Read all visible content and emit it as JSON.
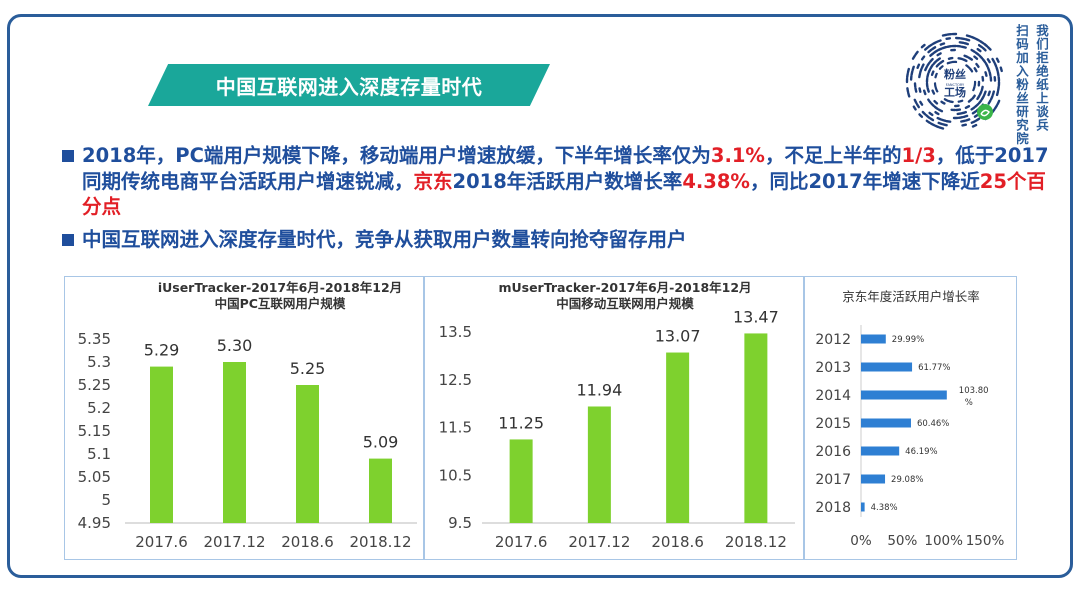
{
  "banner": {
    "title": "中国互联网进入深度存量时代"
  },
  "bullets": {
    "b1": {
      "s1": "2018年，PC端用户规模下降，移动端用户增速放缓，下半年增长率仅为",
      "r1": "3.1%",
      "s2": "，不足上半年的",
      "r2": "1/3",
      "s3": "，低于2017同期传统电商平台活跃用户增速锐减，",
      "r3": "京东",
      "s4": "2018年活跃用户数增长率",
      "r4": "4.38%",
      "s5": "，同比2017年增速下降近",
      "r5": "25个百分点"
    },
    "b2": {
      "text": "中国互联网进入深度存量时代，竞争从获取用户数量转向抢夺留存用户"
    }
  },
  "qr": {
    "logo_line1": "粉丝",
    "logo_line2": "工场",
    "logo_small": "FANCTORY",
    "right_text_1": "我们拒绝纸上谈兵",
    "right_text_2": "扫码加入粉丝研究院"
  },
  "colors": {
    "bar": "#7ed12e",
    "accent": "#1f4e9c",
    "red": "#e21f26",
    "banner": "#1aa79a",
    "jd_bar": "#2e7fd3"
  },
  "chart_data": [
    {
      "type": "bar",
      "title": "iUserTracker-2017年6月-2018年12月",
      "subtitle": "中国PC互联网用户规模",
      "categories": [
        "2017.6",
        "2017.12",
        "2018.6",
        "2018.12"
      ],
      "values": [
        5.29,
        5.3,
        5.25,
        5.09
      ],
      "value_labels": [
        "5.29",
        "5.30",
        "5.25",
        "5.09"
      ],
      "ylim": [
        4.95,
        5.35
      ],
      "yticks": [
        "4.95",
        "5",
        "5.05",
        "5.1",
        "5.15",
        "5.2",
        "5.25",
        "5.3",
        "5.35"
      ],
      "ytick_values": [
        4.95,
        5.0,
        5.05,
        5.1,
        5.15,
        5.2,
        5.25,
        5.3,
        5.35
      ]
    },
    {
      "type": "bar",
      "title": "mUserTracker-2017年6月-2018年12月",
      "subtitle": "中国移动互联网用户规模",
      "categories": [
        "2017.6",
        "2017.12",
        "2018.6",
        "2018.12"
      ],
      "values": [
        11.25,
        11.94,
        13.07,
        13.47
      ],
      "value_labels": [
        "11.25",
        "11.94",
        "13.07",
        "13.47"
      ],
      "ylim": [
        9.5,
        13.5
      ],
      "yticks": [
        "9.5",
        "10.5",
        "11.5",
        "12.5",
        "13.5"
      ],
      "ytick_values": [
        9.5,
        10.5,
        11.5,
        12.5,
        13.5
      ]
    },
    {
      "type": "bar",
      "orientation": "horizontal",
      "title": "京东年度活跃用户增长率",
      "categories": [
        "2012",
        "2013",
        "2014",
        "2015",
        "2016",
        "2017",
        "2018"
      ],
      "values": [
        29.99,
        61.77,
        103.8,
        60.46,
        46.19,
        29.08,
        4.38
      ],
      "value_labels": [
        "29.99%",
        "61.77%",
        "103.80%",
        "60.46%",
        "46.19%",
        "29.08%",
        "4.38%"
      ],
      "xlim": [
        0,
        150
      ],
      "xticks": [
        "0%",
        "50%",
        "100%",
        "150%"
      ],
      "xtick_values": [
        0,
        50,
        100,
        150
      ]
    }
  ]
}
